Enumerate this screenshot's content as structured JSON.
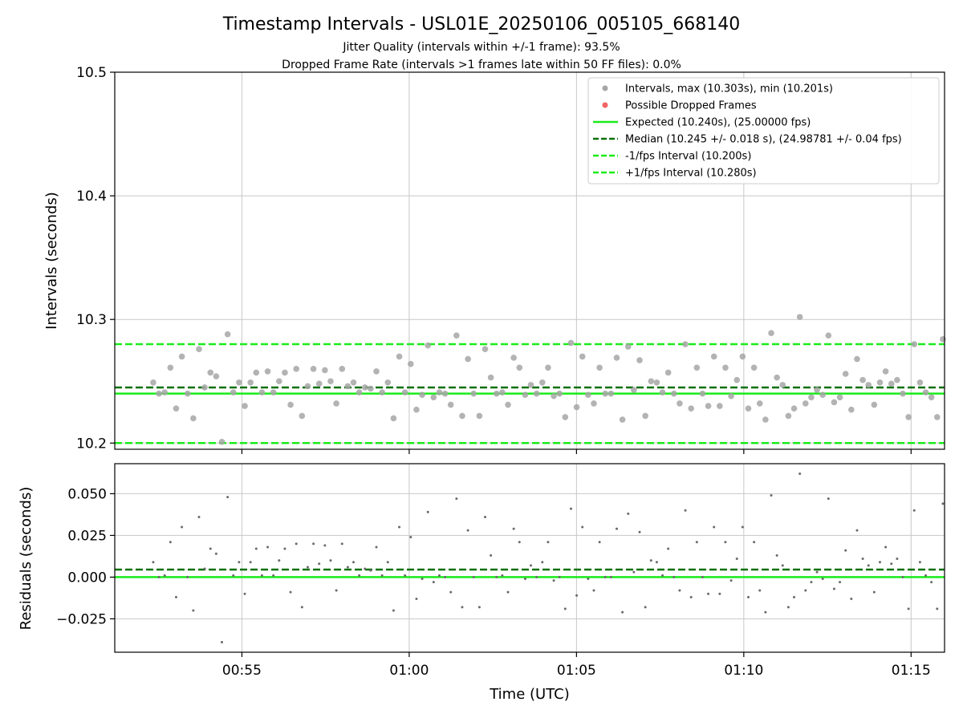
{
  "chart_data": {
    "type": "scatter",
    "title": "Timestamp Intervals - USL01E_20250106_005105_668140",
    "subtitles": [
      "Jitter Quality (intervals within +/-1 frame): 93.5%",
      "Dropped Frame Rate (intervals >1 frames late within 50 FF files): 0.0%"
    ],
    "xlabel": "Time (UTC)",
    "x_ticks": [
      {
        "label": "00:55",
        "t": 55
      },
      {
        "label": "01:00",
        "t": 60
      },
      {
        "label": "01:05",
        "t": 65
      },
      {
        "label": "01:10",
        "t": 70
      },
      {
        "label": "01:15",
        "t": 75
      }
    ],
    "x_range_minutes": [
      51.2,
      76.0
    ],
    "grid": true,
    "legend_position": "top-right",
    "top_panel": {
      "ylabel": "Intervals (seconds)",
      "ylim": [
        10.195,
        10.5
      ],
      "y_ticks": [
        "10.2",
        "10.3",
        "10.4",
        "10.5"
      ],
      "expected": 10.24,
      "median": 10.245,
      "lower_bound": 10.2,
      "upper_bound": 10.28,
      "intervals": [
        10.249,
        10.24,
        10.241,
        10.261,
        10.228,
        10.27,
        10.24,
        10.22,
        10.276,
        10.245,
        10.257,
        10.254,
        10.201,
        10.288,
        10.241,
        10.249,
        10.23,
        10.249,
        10.257,
        10.241,
        10.258,
        10.241,
        10.25,
        10.257,
        10.231,
        10.26,
        10.222,
        10.246,
        10.26,
        10.248,
        10.259,
        10.25,
        10.232,
        10.26,
        10.246,
        10.249,
        10.241,
        10.245,
        10.244,
        10.258,
        10.241,
        10.249,
        10.22,
        10.27,
        10.241,
        10.264,
        10.227,
        10.239,
        10.279,
        10.237,
        10.241,
        10.24,
        10.231,
        10.287,
        10.222,
        10.268,
        10.24,
        10.222,
        10.276,
        10.253,
        10.24,
        10.241,
        10.231,
        10.269,
        10.261,
        10.239,
        10.247,
        10.24,
        10.249,
        10.261,
        10.238,
        10.24,
        10.221,
        10.281,
        10.229,
        10.27,
        10.239,
        10.232,
        10.261,
        10.24,
        10.24,
        10.269,
        10.219,
        10.278,
        10.243,
        10.267,
        10.222,
        10.25,
        10.249,
        10.241,
        10.257,
        10.24,
        10.232,
        10.28,
        10.228,
        10.261,
        10.24,
        10.23,
        10.27,
        10.23,
        10.261,
        10.238,
        10.251,
        10.27,
        10.228,
        10.261,
        10.232,
        10.219,
        10.289,
        10.253,
        10.247,
        10.222,
        10.228,
        10.302,
        10.232,
        10.237,
        10.243,
        10.239,
        10.287,
        10.233,
        10.237,
        10.256,
        10.227,
        10.268,
        10.251,
        10.247,
        10.231,
        10.249,
        10.258,
        10.248,
        10.251,
        10.24,
        10.221,
        10.28,
        10.249,
        10.241,
        10.237,
        10.221,
        10.284
      ],
      "dropped_frames": []
    },
    "bottom_panel": {
      "ylabel": "Residuals (seconds)",
      "ylim": [
        -0.045,
        0.068
      ],
      "y_ticks": [
        "−0.025",
        "0.000",
        "0.025",
        "0.050"
      ],
      "zero_line": 0.0,
      "median_line": 0.0045
    },
    "legend": [
      {
        "label": "Intervals, max (10.303s), min (10.201s)",
        "style": "marker",
        "color": "#a6a6a6"
      },
      {
        "label": "Possible Dropped Frames",
        "style": "marker",
        "color": "#f06464"
      },
      {
        "label": "Expected (10.240s), (25.00000 fps)",
        "style": "solid",
        "color": "#1aeb1a"
      },
      {
        "label": "Median (10.245 +/- 0.018 s), (24.98781 +/- 0.04 fps)",
        "style": "dashed",
        "color": "#0a700a"
      },
      {
        "label": "-1/fps Interval (10.200s)",
        "style": "dashed",
        "color": "#1aeb1a"
      },
      {
        "label": "+1/fps Interval (10.280s)",
        "style": "dashed",
        "color": "#1aeb1a"
      }
    ],
    "colors": {
      "points": "#a6a6a6",
      "residual_points": "#6a6a6a",
      "expected": "#1aeb1a",
      "median": "#0a700a",
      "bounds": "#1aeb1a",
      "dropped": "#f06464",
      "grid": "#c8c8c8"
    }
  }
}
